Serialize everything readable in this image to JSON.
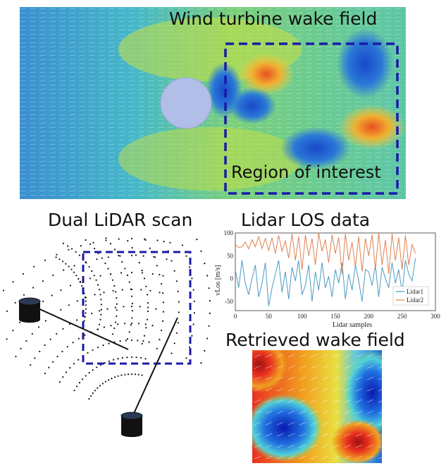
{
  "wake_field": {
    "title": "Wind turbine wake field",
    "roi_label": "Region of interest"
  },
  "scan": {
    "title": "Dual LiDAR scan"
  },
  "los": {
    "title": "Lidar LOS data"
  },
  "retrieved": {
    "title": "Retrieved wake field"
  },
  "colors": {
    "roi_box": "#1a1aa8",
    "lidar1": "#4a9bc0",
    "lidar2": "#e08050",
    "sensor": "#111111",
    "sensor_top": "#2a3a55"
  },
  "chart_data": {
    "type": "line",
    "xlabel": "Lidar samples",
    "ylabel": "vLos [m/s]",
    "xlim": [
      0,
      300
    ],
    "ylim": [
      -70,
      100
    ],
    "xticks": [
      0,
      50,
      100,
      150,
      200,
      250,
      300
    ],
    "yticks": [
      -50,
      0,
      50,
      100
    ],
    "legend_position": "bottom-right",
    "series": [
      {
        "name": "Lidar1",
        "x": [
          0,
          5,
          10,
          15,
          20,
          25,
          30,
          35,
          40,
          45,
          50,
          55,
          60,
          65,
          70,
          75,
          80,
          85,
          90,
          95,
          100,
          105,
          110,
          115,
          120,
          125,
          130,
          135,
          140,
          145,
          150,
          155,
          160,
          165,
          170,
          175,
          180,
          185,
          190,
          195,
          200,
          205,
          210,
          215,
          220,
          225,
          230,
          235,
          240,
          245,
          250,
          255,
          260,
          265,
          270
        ],
        "values": [
          20,
          -20,
          40,
          -10,
          -35,
          0,
          30,
          -40,
          -10,
          35,
          -60,
          -20,
          10,
          40,
          -30,
          15,
          -45,
          25,
          -5,
          40,
          -35,
          -15,
          30,
          -50,
          15,
          -25,
          35,
          -20,
          5,
          -40,
          20,
          -10,
          35,
          -45,
          10,
          -25,
          30,
          -5,
          -50,
          20,
          15,
          -15,
          30,
          -40,
          25,
          0,
          -20,
          35,
          -10,
          20,
          -30,
          40,
          10,
          -5,
          45
        ]
      },
      {
        "name": "Lidar2",
        "x": [
          0,
          5,
          10,
          15,
          20,
          25,
          30,
          35,
          40,
          45,
          50,
          55,
          60,
          65,
          70,
          75,
          80,
          85,
          90,
          95,
          100,
          105,
          110,
          115,
          120,
          125,
          130,
          135,
          140,
          145,
          150,
          155,
          160,
          165,
          170,
          175,
          180,
          185,
          190,
          195,
          200,
          205,
          210,
          215,
          220,
          225,
          230,
          235,
          240,
          245,
          250,
          255,
          260,
          265,
          270
        ],
        "values": [
          75,
          68,
          70,
          80,
          65,
          85,
          70,
          92,
          66,
          88,
          62,
          90,
          55,
          95,
          60,
          82,
          45,
          98,
          40,
          92,
          20,
          95,
          50,
          88,
          30,
          99,
          60,
          85,
          35,
          96,
          55,
          90,
          10,
          98,
          40,
          80,
          25,
          92,
          15,
          88,
          50,
          96,
          20,
          100,
          30,
          85,
          10,
          98,
          40,
          90,
          20,
          95,
          30,
          75,
          55
        ]
      }
    ]
  }
}
